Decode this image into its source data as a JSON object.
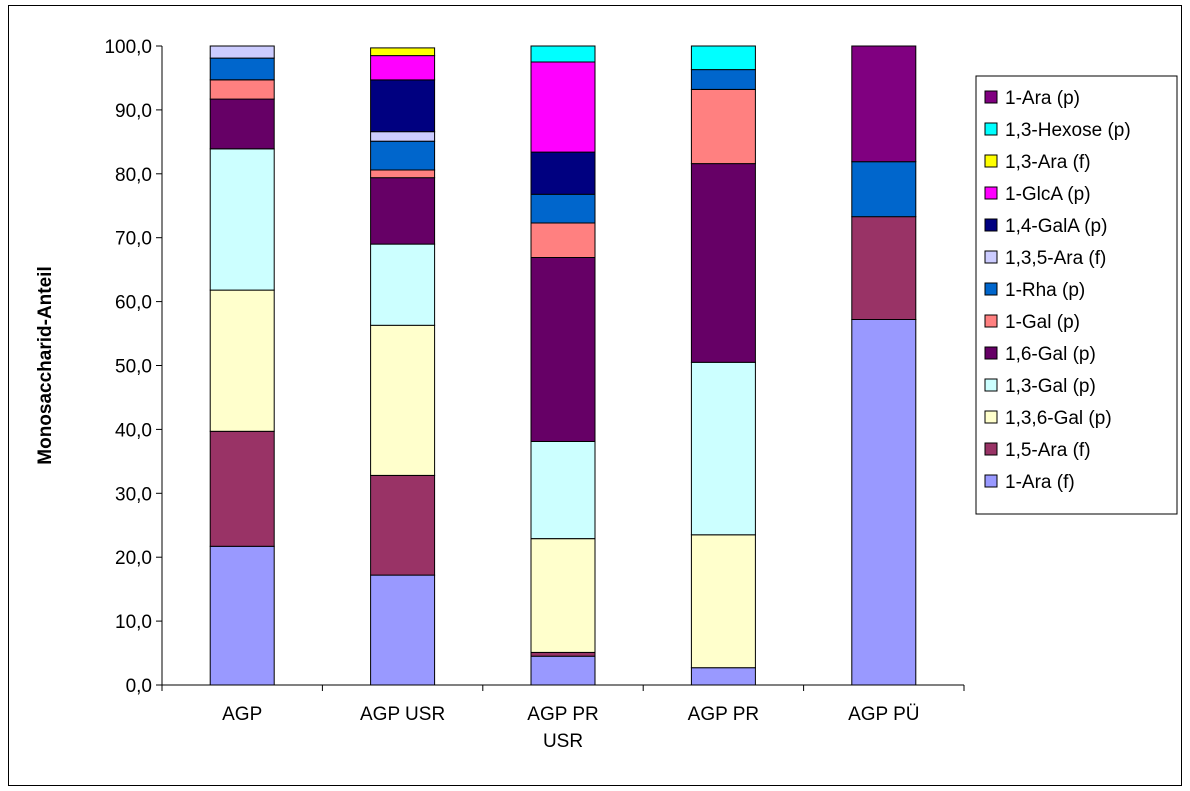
{
  "chart_data": {
    "type": "stacked-bar",
    "title": "",
    "xlabel": "",
    "ylabel": "Monosaccharid-Anteil",
    "ylim": [
      0,
      100
    ],
    "yticks": [
      "0,0",
      "10,0",
      "20,0",
      "30,0",
      "40,0",
      "50,0",
      "60,0",
      "70,0",
      "80,0",
      "90,0",
      "100,0"
    ],
    "grid": false,
    "legend_position": "right",
    "categories": [
      [
        "AGP"
      ],
      [
        "AGP USR"
      ],
      [
        "AGP PR",
        "USR"
      ],
      [
        "AGP PR"
      ],
      [
        "AGP PÜ"
      ]
    ],
    "series": [
      {
        "name": "1-Ara (f)",
        "color": "#9999FF",
        "values": [
          21.7,
          17.2,
          4.5,
          2.7,
          57.2
        ]
      },
      {
        "name": "1,5-Ara (f)",
        "color": "#993366",
        "values": [
          18.0,
          15.6,
          0.6,
          0.0,
          16.1
        ]
      },
      {
        "name": "1,3,6-Gal (p)",
        "color": "#FFFFCC",
        "values": [
          22.1,
          23.5,
          17.8,
          20.8,
          0.0
        ]
      },
      {
        "name": "1,3-Gal (p)",
        "color": "#CCFFFF",
        "values": [
          22.1,
          12.7,
          15.2,
          27.0,
          0.0
        ]
      },
      {
        "name": "1,6-Gal (p)",
        "color": "#660066",
        "values": [
          7.8,
          10.4,
          28.8,
          31.1,
          0.0
        ]
      },
      {
        "name": "1-Gal (p)",
        "color": "#FF8080",
        "values": [
          3.0,
          1.2,
          5.4,
          11.6,
          0.0
        ]
      },
      {
        "name": "1-Rha (p)",
        "color": "#0066CC",
        "values": [
          3.4,
          4.5,
          4.5,
          3.1,
          8.6
        ]
      },
      {
        "name": "1,3,5-Ara (f)",
        "color": "#CCCCFF",
        "values": [
          1.9,
          1.5,
          0.0,
          0.0,
          0.0
        ]
      },
      {
        "name": "1,4-GalA (p)",
        "color": "#000080",
        "values": [
          0.0,
          8.1,
          6.6,
          0.0,
          0.0
        ]
      },
      {
        "name": "1-GlcA (p)",
        "color": "#FF00FF",
        "values": [
          0.0,
          3.8,
          14.1,
          0.0,
          0.0
        ]
      },
      {
        "name": "1,3-Ara (f)",
        "color": "#FFFF00",
        "values": [
          0.0,
          1.2,
          0.0,
          0.0,
          0.0
        ]
      },
      {
        "name": "1,3-Hexose (p)",
        "color": "#00FFFF",
        "values": [
          0.0,
          0.0,
          2.5,
          3.7,
          0.0
        ]
      },
      {
        "name": "1-Ara (p)",
        "color": "#800080",
        "values": [
          0.0,
          0.0,
          0.0,
          0.0,
          18.1
        ]
      }
    ]
  }
}
